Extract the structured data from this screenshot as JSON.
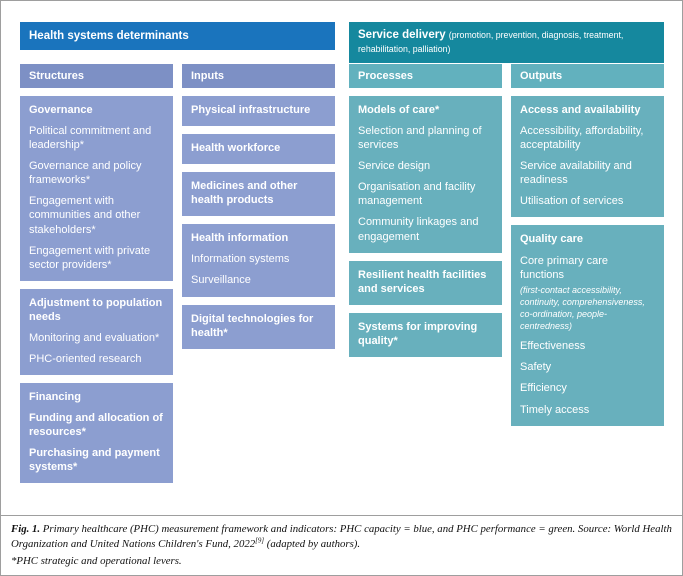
{
  "colors": {
    "left_main_header": "#1a74bd",
    "left_col_header": "#7d90c5",
    "left_box": "#8c9ed0",
    "right_main_header": "#15889e",
    "right_col_header": "#62b1be",
    "right_box": "#68b0bd"
  },
  "left": {
    "header": "Health systems determinants",
    "columns": [
      {
        "header": "Structures",
        "boxes": [
          {
            "items": [
              {
                "text": "Governance",
                "bold": true
              },
              {
                "text": "Political commitment and leadership*"
              },
              {
                "text": "Governance and policy frameworks*"
              },
              {
                "text": "Engagement with communities and other stakeholders*"
              },
              {
                "text": "Engagement with private sector providers*"
              }
            ]
          },
          {
            "items": [
              {
                "text": "Adjustment to population needs",
                "bold": true
              },
              {
                "text": "Monitoring and evaluation*"
              },
              {
                "text": "PHC-oriented research"
              }
            ]
          },
          {
            "items": [
              {
                "text": "Financing",
                "bold": true
              },
              {
                "text": "Funding and allocation of resources*",
                "bold": true
              },
              {
                "text": "Purchasing and payment systems*",
                "bold": true
              }
            ]
          }
        ]
      },
      {
        "header": "Inputs",
        "boxes": [
          {
            "items": [
              {
                "text": "Physical infrastructure",
                "bold": true
              }
            ]
          },
          {
            "items": [
              {
                "text": "Health workforce",
                "bold": true
              }
            ]
          },
          {
            "items": [
              {
                "text": "Medicines and other health products",
                "bold": true
              }
            ]
          },
          {
            "items": [
              {
                "text": "Health information",
                "bold": true
              },
              {
                "text": "Information systems"
              },
              {
                "text": "Surveillance"
              }
            ]
          },
          {
            "items": [
              {
                "text": "Digital technologies for health*",
                "bold": true
              }
            ]
          }
        ]
      }
    ]
  },
  "right": {
    "header_bold": "Service delivery",
    "header_note": "(promotion, prevention, diagnosis, treatment, rehabilitation, palliation)",
    "columns": [
      {
        "header": "Processes",
        "boxes": [
          {
            "items": [
              {
                "text": "Models of care*",
                "bold": true
              },
              {
                "text": "Selection and planning of services"
              },
              {
                "text": "Service design"
              },
              {
                "text": "Organisation and facility management"
              },
              {
                "text": "Community linkages and engagement"
              }
            ]
          },
          {
            "items": [
              {
                "text": "Resilient health facilities and services",
                "bold": true
              }
            ]
          },
          {
            "items": [
              {
                "text": "Systems for improving quality*",
                "bold": true
              }
            ]
          }
        ]
      },
      {
        "header": "Outputs",
        "boxes": [
          {
            "items": [
              {
                "text": "Access and availability",
                "bold": true
              },
              {
                "text": "Accessibility, affordability, acceptability"
              },
              {
                "text": "Service availability and readiness"
              },
              {
                "text": "Utilisation of services"
              }
            ]
          },
          {
            "items": [
              {
                "text": "Quality care",
                "bold": true
              },
              {
                "text": "Core primary care functions"
              },
              {
                "text": "(first-contact accessibility, continuity, comprehensiveness, co-ordination, people-centredness)",
                "italic": true
              },
              {
                "text": "Effectiveness"
              },
              {
                "text": "Safety"
              },
              {
                "text": "Efficiency"
              },
              {
                "text": "Timely access"
              }
            ]
          }
        ]
      }
    ]
  },
  "caption": {
    "fig_label": "Fig. 1.",
    "body": " Primary healthcare (PHC) measurement framework and indicators: PHC capacity = blue, and PHC performance = green. Source: World Health Organization and United Nations Children's Fund, 2022",
    "superscript": "[9]",
    "tail": " (adapted by authors).",
    "footnote": "*PHC strategic and operational levers."
  }
}
